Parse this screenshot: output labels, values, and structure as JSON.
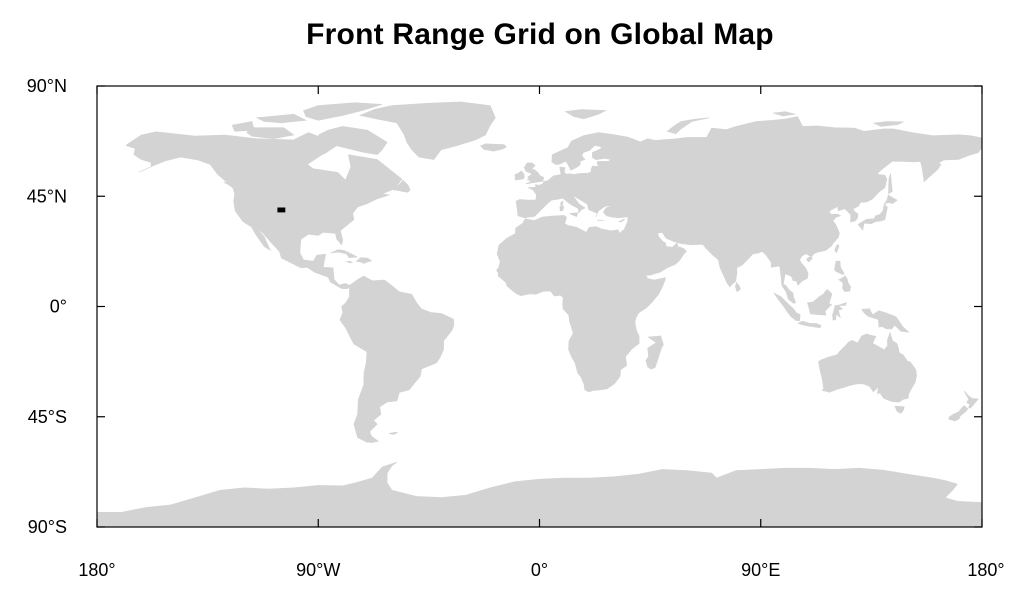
{
  "map": {
    "title": "Front Range Grid on Global Map",
    "projection": "cylindrical-equidistant",
    "lon_range": [
      -180,
      180
    ],
    "lat_range": [
      -90,
      90
    ],
    "land_color": "#d3d3d3",
    "ocean_color": "#ffffff",
    "marker_color": "#000000",
    "y_ticks": [
      {
        "lat": 90,
        "label": "90°N"
      },
      {
        "lat": 45,
        "label": "45°N"
      },
      {
        "lat": 0,
        "label": "0°"
      },
      {
        "lat": -45,
        "label": "45°S"
      },
      {
        "lat": -90,
        "label": "90°S"
      }
    ],
    "x_ticks": [
      {
        "lon": -180,
        "label": "180°"
      },
      {
        "lon": -90,
        "label": "90°W"
      },
      {
        "lon": 0,
        "label": "0°"
      },
      {
        "lon": 90,
        "label": "90°E"
      },
      {
        "lon": 180,
        "label": "180°"
      }
    ],
    "grid_region": {
      "lon_min": -106.6,
      "lon_max": -103.4,
      "lat_min": 38.4,
      "lat_max": 40.4
    }
  }
}
